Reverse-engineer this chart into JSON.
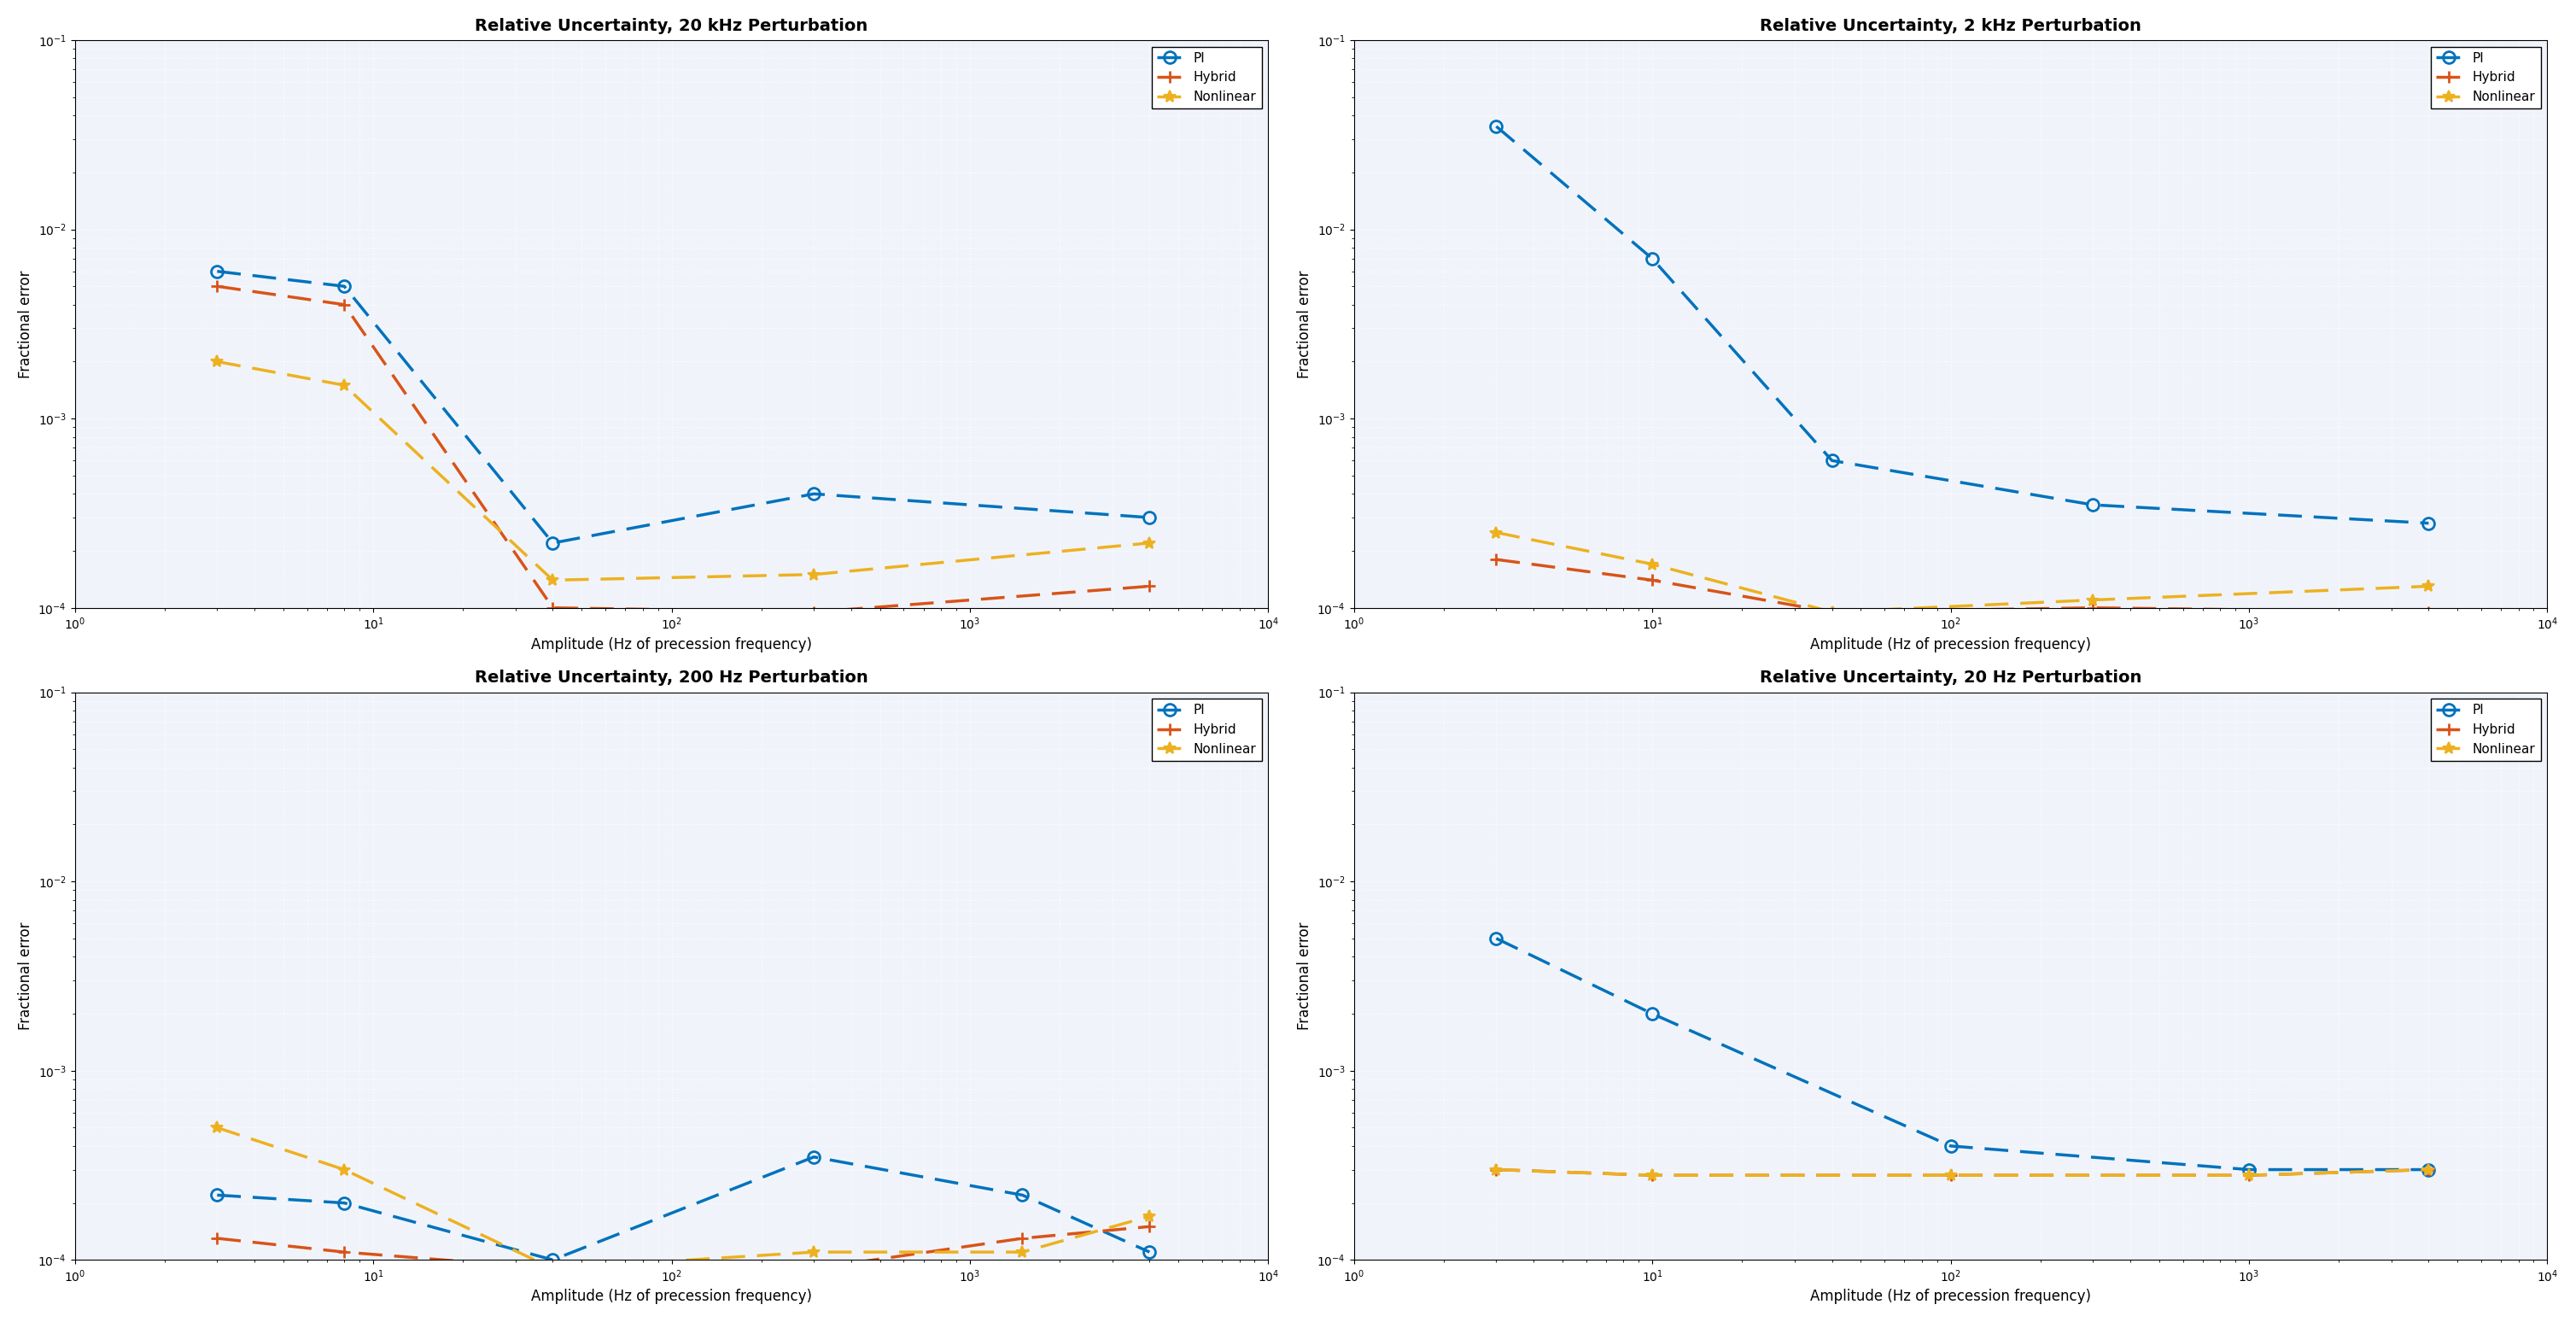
{
  "plots": [
    {
      "title": "Relative Uncertainty, 20 kHz Perturbation",
      "PI": {
        "x": [
          3,
          8,
          40,
          300,
          4000
        ],
        "y": [
          0.006,
          0.005,
          0.00022,
          0.0004,
          0.0003
        ]
      },
      "Hybrid": {
        "x": [
          3,
          8,
          40,
          300,
          4000
        ],
        "y": [
          0.005,
          0.004,
          0.0001,
          9.5e-05,
          0.00013
        ]
      },
      "Nonlinear": {
        "x": [
          3,
          8,
          40,
          300,
          4000
        ],
        "y": [
          0.002,
          0.0015,
          0.00014,
          0.00015,
          0.00022
        ]
      }
    },
    {
      "title": "Relative Uncertainty, 2 kHz Perturbation",
      "PI": {
        "x": [
          3,
          10,
          40,
          300,
          4000
        ],
        "y": [
          0.035,
          0.007,
          0.0006,
          0.00035,
          0.00028
        ]
      },
      "Hybrid": {
        "x": [
          3,
          10,
          40,
          300,
          4000
        ],
        "y": [
          0.00018,
          0.00014,
          9.5e-05,
          0.0001,
          9.5e-05
        ]
      },
      "Nonlinear": {
        "x": [
          3,
          10,
          40,
          300,
          4000
        ],
        "y": [
          0.00025,
          0.00017,
          9.5e-05,
          0.00011,
          0.00013
        ]
      }
    },
    {
      "title": "Relative Uncertainty, 200 Hz Perturbation",
      "PI": {
        "x": [
          3,
          8,
          40,
          300,
          1500,
          4000
        ],
        "y": [
          0.00022,
          0.0002,
          0.0001,
          0.00035,
          0.00022,
          0.00011
        ]
      },
      "Hybrid": {
        "x": [
          3,
          8,
          40,
          300,
          1500,
          4000
        ],
        "y": [
          0.00013,
          0.00011,
          9e-05,
          9e-05,
          0.00013,
          0.00015
        ]
      },
      "Nonlinear": {
        "x": [
          3,
          8,
          40,
          300,
          1500,
          4000
        ],
        "y": [
          0.0005,
          0.0003,
          9e-05,
          0.00011,
          0.00011,
          0.00017
        ]
      }
    },
    {
      "title": "Relative Uncertainty, 20 Hz Perturbation",
      "PI": {
        "x": [
          3,
          10,
          100,
          1000,
          4000
        ],
        "y": [
          0.005,
          0.002,
          0.0004,
          0.0003,
          0.0003
        ]
      },
      "Hybrid": {
        "x": [
          3,
          10,
          100,
          1000,
          4000
        ],
        "y": [
          0.0003,
          0.00028,
          0.00028,
          0.00028,
          0.0003
        ]
      },
      "Nonlinear": {
        "x": [
          3,
          10,
          100,
          1000,
          4000
        ],
        "y": [
          0.0003,
          0.00028,
          0.00028,
          0.00028,
          0.0003
        ]
      }
    }
  ],
  "xlabel": "Amplitude (Hz of precession frequency)",
  "ylabel": "Fractional error",
  "xlim": [
    1,
    10000.0
  ],
  "ylim": [
    0.0001,
    0.1
  ],
  "PI_color": "#0072BD",
  "Hybrid_color": "#D95319",
  "Nonlinear_color": "#EDB120",
  "background_color": "#f0f4fa",
  "title_fontsize": 14,
  "label_fontsize": 12,
  "legend_fontsize": 11
}
